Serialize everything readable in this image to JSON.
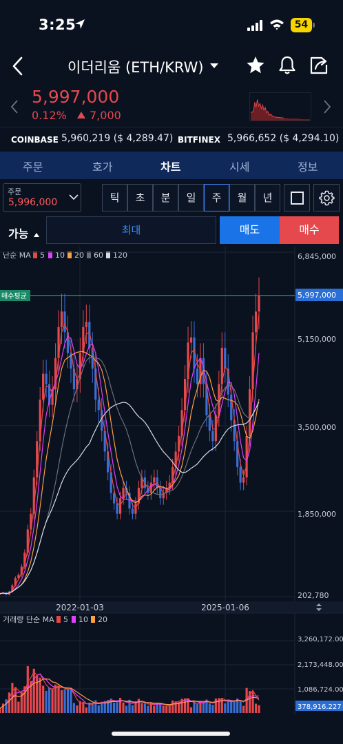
{
  "status": {
    "time": "3:25",
    "battery": "54"
  },
  "header": {
    "title": "이더리움 (ETH/KRW)"
  },
  "price": {
    "current": "5,997,000",
    "percent": "0.12%",
    "change": "7,000"
  },
  "exchanges": [
    {
      "name": "COINBASE",
      "value": "5,960,219 ($ 4,289.47)"
    },
    {
      "name": "BITFINEX",
      "value": "5,966,652 ($ 4,294.10)"
    }
  ],
  "tabs": [
    {
      "label": "주문",
      "active": false
    },
    {
      "label": "호가",
      "active": false
    },
    {
      "label": "차트",
      "active": true
    },
    {
      "label": "시세",
      "active": false
    },
    {
      "label": "정보",
      "active": false
    }
  ],
  "order": {
    "label": "주문",
    "value": "5,996,000"
  },
  "periods": [
    "틱",
    "초",
    "분",
    "일",
    "주",
    "월",
    "년"
  ],
  "active_period": "주",
  "trade": {
    "available": "가능",
    "max": "최대",
    "sell": "매도",
    "buy": "매수"
  },
  "colors": {
    "up": "#e5484d",
    "down": "#3b6fd6",
    "ma5": "#e5483f",
    "ma10": "#e040fb",
    "ma20": "#ff9f43",
    "ma60": "#6b6f78",
    "ma120": "#d8dce3",
    "avg_line": "#1fa27a",
    "price_tag": "#2a6fd6"
  },
  "chart_data": {
    "type": "candlestick",
    "price_legend": {
      "label": "단순 MA",
      "periods": [
        "5",
        "10",
        "20",
        "60",
        "120"
      ]
    },
    "volume_legend": {
      "label": "거래량 단순 MA",
      "periods": [
        "5",
        "10",
        "20"
      ]
    },
    "y_ticks": [
      "6,845,000",
      "5,150,000",
      "3,500,000",
      "1,850,000",
      "202,780"
    ],
    "y_tick_values": [
      6845000,
      5150000,
      3500000,
      1850000,
      202780
    ],
    "current_price_tag": "5,997,000",
    "avg_buy_label": "매수평균",
    "avg_buy_price": 5997000,
    "x_ticks": [
      "2022-01-03",
      "2025-01-06"
    ],
    "volume_ticks": [
      "3,260,172.001",
      "2,173,448.001",
      "1,086,724.000"
    ],
    "volume_current_tag": "378,916.227",
    "close_series": [
      260000,
      280000,
      240000,
      300000,
      420000,
      560000,
      620000,
      780000,
      1050000,
      1500000,
      1800000,
      2500000,
      3200000,
      4000000,
      4500000,
      4300000,
      3900000,
      4200000,
      4800000,
      5400000,
      5700000,
      5300000,
      4900000,
      4600000,
      4200000,
      4400000,
      4900000,
      5400000,
      5500000,
      5000000,
      4600000,
      4000000,
      3800000,
      3400000,
      3000000,
      2600000,
      2200000,
      2000000,
      1800000,
      2100000,
      2300000,
      2200000,
      1900000,
      1800000,
      2000000,
      2300000,
      2500000,
      2300000,
      2200000,
      2400000,
      2500000,
      2300000,
      2100000,
      2200000,
      2300000,
      2400000,
      2700000,
      3000000,
      3300000,
      3800000,
      4400000,
      5100000,
      5200000,
      4600000,
      4300000,
      4800000,
      4300000,
      3700000,
      3400000,
      3200000,
      3700000,
      4300000,
      5000000,
      4600000,
      4100000,
      3600000,
      3200000,
      2700000,
      2400000,
      2500000,
      3300000,
      4200000,
      5300000,
      5700000,
      5997000
    ]
  }
}
